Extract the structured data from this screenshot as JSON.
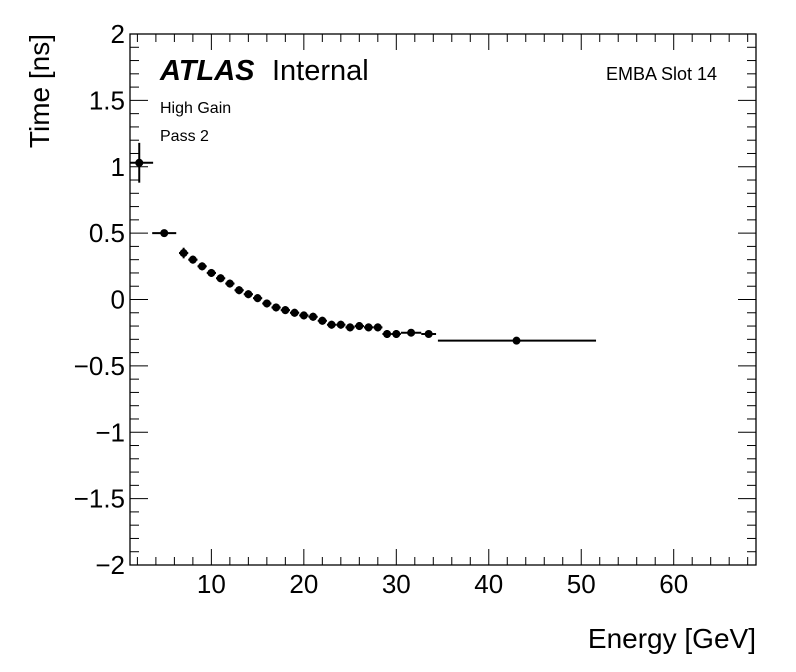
{
  "chart_data": {
    "type": "scatter",
    "title": "",
    "xlabel": "Energy [GeV]",
    "ylabel": "Time [ns]",
    "xlim": [
      1.2,
      68.9
    ],
    "ylim": [
      -2,
      2
    ],
    "xticks": [
      10,
      20,
      30,
      40,
      50,
      60
    ],
    "yticks": [
      -2,
      -1.5,
      -1,
      -0.5,
      0,
      0.5,
      1,
      1.5,
      2
    ],
    "ytick_labels": [
      "−2",
      "−1.5",
      "−1",
      "−0.5",
      "0",
      "0.5",
      "1",
      "1.5",
      "2"
    ],
    "grid": false,
    "annotations": {
      "experiment": "ATLAS",
      "status": "Internal",
      "gain": "High Gain",
      "pass": "Pass 2",
      "slot": "EMBA Slot 14"
    },
    "series": [
      {
        "name": "EMBA Slot 14",
        "points": [
          {
            "x": 2.2,
            "y": 1.03,
            "xerr": [
              1.0,
              1.5
            ],
            "yerr": 0.15
          },
          {
            "x": 4.9,
            "y": 0.5,
            "xerr": [
              1.3,
              1.3
            ],
            "yerr": 0.02
          },
          {
            "x": 7.0,
            "y": 0.35,
            "xerr": [
              0.5,
              0.5
            ],
            "yerr": 0.04
          },
          {
            "x": 8.0,
            "y": 0.3,
            "xerr": [
              0.5,
              0.5
            ],
            "yerr": 0.03
          },
          {
            "x": 9.0,
            "y": 0.25,
            "xerr": [
              0.5,
              0.5
            ],
            "yerr": 0.03
          },
          {
            "x": 10.0,
            "y": 0.2,
            "xerr": [
              0.5,
              0.5
            ],
            "yerr": 0.03
          },
          {
            "x": 11.0,
            "y": 0.16,
            "xerr": [
              0.5,
              0.5
            ],
            "yerr": 0.03
          },
          {
            "x": 12.0,
            "y": 0.12,
            "xerr": [
              0.5,
              0.5
            ],
            "yerr": 0.03
          },
          {
            "x": 13.0,
            "y": 0.07,
            "xerr": [
              0.5,
              0.5
            ],
            "yerr": 0.03
          },
          {
            "x": 14.0,
            "y": 0.04,
            "xerr": [
              0.5,
              0.5
            ],
            "yerr": 0.03
          },
          {
            "x": 15.0,
            "y": 0.01,
            "xerr": [
              0.5,
              0.5
            ],
            "yerr": 0.03
          },
          {
            "x": 16.0,
            "y": -0.03,
            "xerr": [
              0.5,
              0.5
            ],
            "yerr": 0.03
          },
          {
            "x": 17.0,
            "y": -0.06,
            "xerr": [
              0.5,
              0.5
            ],
            "yerr": 0.03
          },
          {
            "x": 18.0,
            "y": -0.08,
            "xerr": [
              0.5,
              0.5
            ],
            "yerr": 0.03
          },
          {
            "x": 19.0,
            "y": -0.1,
            "xerr": [
              0.5,
              0.5
            ],
            "yerr": 0.03
          },
          {
            "x": 20.0,
            "y": -0.12,
            "xerr": [
              0.5,
              0.5
            ],
            "yerr": 0.03
          },
          {
            "x": 21.0,
            "y": -0.13,
            "xerr": [
              0.5,
              0.5
            ],
            "yerr": 0.03
          },
          {
            "x": 22.0,
            "y": -0.16,
            "xerr": [
              0.5,
              0.5
            ],
            "yerr": 0.03
          },
          {
            "x": 23.0,
            "y": -0.19,
            "xerr": [
              0.5,
              0.5
            ],
            "yerr": 0.03
          },
          {
            "x": 24.0,
            "y": -0.19,
            "xerr": [
              0.5,
              0.5
            ],
            "yerr": 0.03
          },
          {
            "x": 25.0,
            "y": -0.21,
            "xerr": [
              0.5,
              0.5
            ],
            "yerr": 0.03
          },
          {
            "x": 26.0,
            "y": -0.2,
            "xerr": [
              0.5,
              0.5
            ],
            "yerr": 0.03
          },
          {
            "x": 27.0,
            "y": -0.21,
            "xerr": [
              0.5,
              0.5
            ],
            "yerr": 0.03
          },
          {
            "x": 28.0,
            "y": -0.21,
            "xerr": [
              0.5,
              0.5
            ],
            "yerr": 0.03
          },
          {
            "x": 29.0,
            "y": -0.26,
            "xerr": [
              0.5,
              0.5
            ],
            "yerr": 0.03
          },
          {
            "x": 30.0,
            "y": -0.26,
            "xerr": [
              0.5,
              0.5
            ],
            "yerr": 0.03
          },
          {
            "x": 31.6,
            "y": -0.25,
            "xerr": [
              1.1,
              1.1
            ],
            "yerr": 0.02
          },
          {
            "x": 33.5,
            "y": -0.26,
            "xerr": [
              0.8,
              0.8
            ],
            "yerr": 0.02
          },
          {
            "x": 43.0,
            "y": -0.31,
            "xerr": [
              8.5,
              8.6
            ],
            "yerr": 0.01
          }
        ]
      }
    ]
  }
}
